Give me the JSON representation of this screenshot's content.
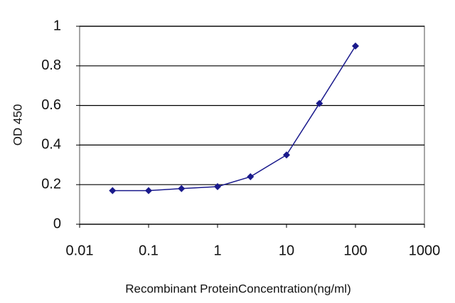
{
  "chart_data": {
    "type": "line",
    "x_label": "Recombinant ProteinConcentration(ng/ml)",
    "y_label": "OD 450",
    "x": [
      0.03,
      0.1,
      0.3,
      1,
      3,
      10,
      30,
      100
    ],
    "series": [
      {
        "color": "#1a1a8c",
        "values": [
          0.17,
          0.17,
          0.18,
          0.19,
          0.24,
          0.35,
          0.61,
          0.9
        ]
      }
    ],
    "xlim": [
      0.01,
      1000
    ],
    "xticks": [
      0.01,
      0.1,
      1,
      10,
      100,
      1000
    ],
    "x_log": true,
    "ylim": [
      0,
      1
    ],
    "yticks": [
      0,
      0.2,
      0.4,
      0.6,
      0.8,
      1
    ],
    "grid": true
  }
}
